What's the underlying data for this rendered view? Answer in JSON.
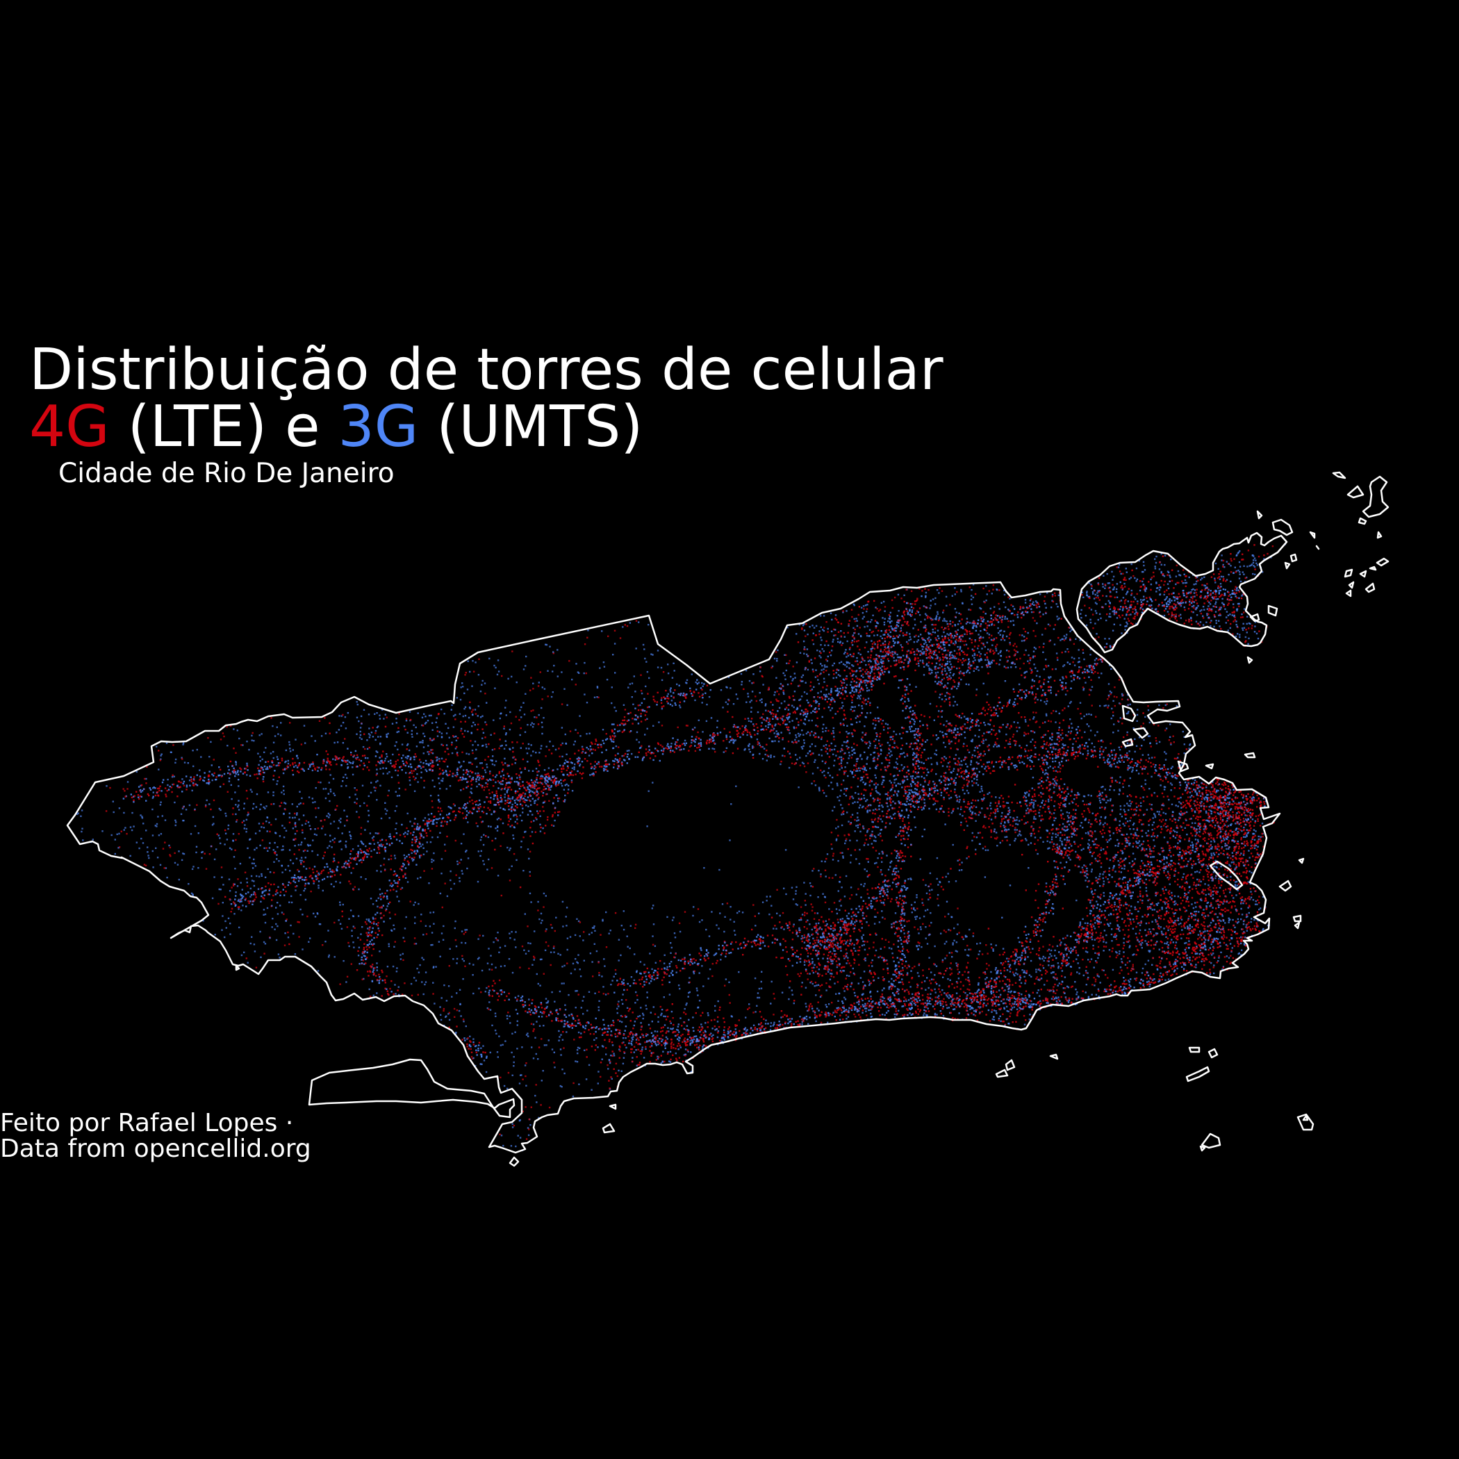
{
  "title": {
    "line1": "Distribuição de torres de celular",
    "lte_prefix": "4G",
    "lte_label": " (LTE) e ",
    "umts_prefix": "3G",
    "umts_label": " (UMTS)",
    "subtitle": "Cidade de Rio De Janeiro"
  },
  "credits": {
    "author": "Feito por Rafael Lopes ·",
    "source": "Data from opencellid.org"
  },
  "colors": {
    "background": "#000000",
    "outline": "#ffffff",
    "lte": "#d40510",
    "umts": "#4f86f7"
  },
  "map_legend": {
    "series": [
      {
        "name": "4G",
        "technology": "LTE",
        "color": "#d40510"
      },
      {
        "name": "3G",
        "technology": "UMTS",
        "color": "#4f86f7"
      }
    ]
  }
}
